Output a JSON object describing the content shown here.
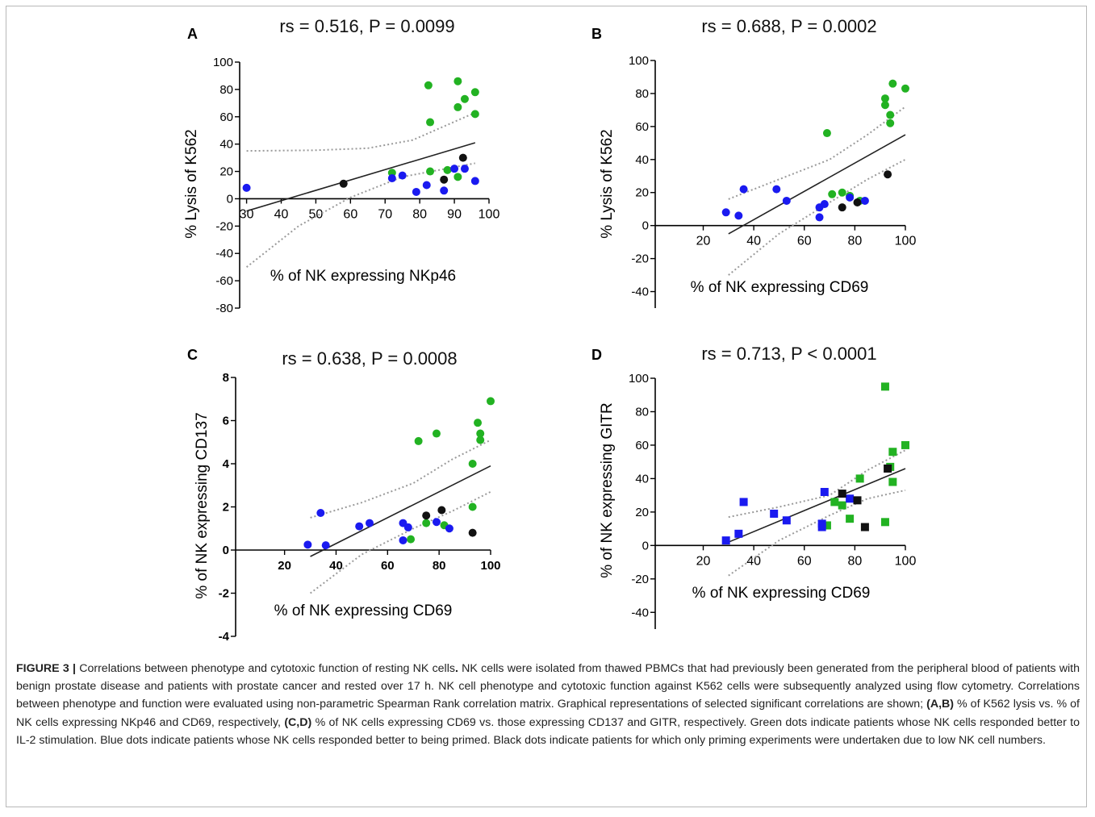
{
  "chart_data": [
    {
      "type": "scatter",
      "panel_label": "A",
      "title": "rs = 0.516, P = 0.0099",
      "xlabel": "% of NK expressing NKp46",
      "ylabel": "% Lysis of K562",
      "xlim": [
        28,
        100
      ],
      "ylim": [
        -80,
        100
      ],
      "xticks": [
        30,
        40,
        50,
        60,
        70,
        80,
        90,
        100
      ],
      "yticks": [
        -80,
        -60,
        -40,
        -20,
        0,
        20,
        40,
        60,
        80,
        100
      ],
      "marker": "circle",
      "series": [
        {
          "color": "#22b222",
          "points": [
            [
              82.5,
              83
            ],
            [
              91,
              86
            ],
            [
              96,
              78
            ],
            [
              93,
              73
            ],
            [
              91,
              67
            ],
            [
              96,
              62
            ],
            [
              83,
              56
            ],
            [
              72,
              19
            ],
            [
              83,
              20
            ],
            [
              88,
              21
            ],
            [
              91,
              16
            ]
          ]
        },
        {
          "color": "#1a1af0",
          "points": [
            [
              30,
              8
            ],
            [
              72,
              15
            ],
            [
              75,
              17
            ],
            [
              79,
              5
            ],
            [
              82,
              10
            ],
            [
              87,
              6
            ],
            [
              90,
              22
            ],
            [
              93,
              22
            ],
            [
              96,
              13
            ]
          ]
        },
        {
          "color": "#111111",
          "points": [
            [
              58,
              11
            ],
            [
              87,
              14
            ],
            [
              92.5,
              30
            ]
          ]
        }
      ],
      "fit_line": [
        [
          30,
          -9
        ],
        [
          96,
          41
        ]
      ],
      "ci_upper": [
        [
          30,
          35
        ],
        [
          50,
          35.5
        ],
        [
          65,
          37
        ],
        [
          78,
          43
        ],
        [
          96,
          63
        ]
      ],
      "ci_lower": [
        [
          30,
          -50
        ],
        [
          45,
          -20
        ],
        [
          60,
          1
        ],
        [
          75,
          16
        ],
        [
          96,
          26
        ]
      ]
    },
    {
      "type": "scatter",
      "panel_label": "B",
      "title": "rs = 0.688, P = 0.0002",
      "xlabel": "% of NK expressing CD69",
      "ylabel": "% Lysis of K562",
      "xlim": [
        1,
        100
      ],
      "ylim": [
        -50,
        100
      ],
      "xticks": [
        20,
        40,
        60,
        80,
        100
      ],
      "yticks": [
        -40,
        -20,
        0,
        20,
        40,
        60,
        80,
        100
      ],
      "marker": "circle",
      "series": [
        {
          "color": "#22b222",
          "points": [
            [
              95,
              86
            ],
            [
              100,
              83
            ],
            [
              92,
              77
            ],
            [
              92,
              73
            ],
            [
              94,
              67
            ],
            [
              94,
              62
            ],
            [
              69,
              56
            ],
            [
              71,
              19
            ],
            [
              75,
              20
            ],
            [
              78,
              18
            ],
            [
              82,
              15
            ]
          ]
        },
        {
          "color": "#1a1af0",
          "points": [
            [
              29,
              8
            ],
            [
              34,
              6
            ],
            [
              36,
              22
            ],
            [
              49,
              22
            ],
            [
              53,
              15
            ],
            [
              66,
              5
            ],
            [
              66,
              11
            ],
            [
              68,
              13
            ],
            [
              78,
              17
            ],
            [
              84,
              15
            ]
          ]
        },
        {
          "color": "#111111",
          "points": [
            [
              75,
              11
            ],
            [
              81,
              14
            ],
            [
              93,
              31
            ]
          ]
        }
      ],
      "fit_line": [
        [
          30,
          -5
        ],
        [
          100,
          55
        ]
      ],
      "ci_upper": [
        [
          30,
          16
        ],
        [
          50,
          28
        ],
        [
          70,
          40
        ],
        [
          85,
          55
        ],
        [
          100,
          72
        ]
      ],
      "ci_lower": [
        [
          30,
          -30
        ],
        [
          50,
          -5
        ],
        [
          70,
          14
        ],
        [
          85,
          28
        ],
        [
          100,
          40
        ]
      ]
    },
    {
      "type": "scatter",
      "panel_label": "C",
      "title": "rs = 0.638, P = 0.0008",
      "xlabel": "% of NK expressing CD69",
      "ylabel": "% of NK expressing CD137",
      "xlim": [
        1,
        100
      ],
      "ylim": [
        -4,
        8
      ],
      "xticks": [
        20,
        40,
        60,
        80,
        100
      ],
      "yticks": [
        -4,
        -2,
        0,
        2,
        4,
        6,
        8
      ],
      "marker": "circle",
      "series": [
        {
          "color": "#22b222",
          "points": [
            [
              100,
              6.9
            ],
            [
              95,
              5.9
            ],
            [
              96,
              5.4
            ],
            [
              96,
              5.1
            ],
            [
              79,
              5.4
            ],
            [
              72,
              5.05
            ],
            [
              93,
              4.0
            ],
            [
              93,
              2.0
            ],
            [
              75,
              1.25
            ],
            [
              69,
              0.5
            ],
            [
              82,
              1.15
            ]
          ]
        },
        {
          "color": "#1a1af0",
          "points": [
            [
              29,
              0.25
            ],
            [
              34,
              1.72
            ],
            [
              36,
              0.22
            ],
            [
              49,
              1.1
            ],
            [
              53,
              1.25
            ],
            [
              66,
              1.25
            ],
            [
              68,
              1.05
            ],
            [
              66,
              0.45
            ],
            [
              79,
              1.3
            ],
            [
              84,
              1.0
            ]
          ]
        },
        {
          "color": "#111111",
          "points": [
            [
              75,
              1.6
            ],
            [
              81,
              1.85
            ],
            [
              93,
              0.8
            ]
          ]
        }
      ],
      "fit_line": [
        [
          30,
          -0.3
        ],
        [
          100,
          3.9
        ]
      ],
      "ci_upper": [
        [
          30,
          1.5
        ],
        [
          50,
          2.2
        ],
        [
          70,
          3.1
        ],
        [
          85,
          4.2
        ],
        [
          100,
          5.1
        ]
      ],
      "ci_lower": [
        [
          30,
          -2.0
        ],
        [
          50,
          -0.2
        ],
        [
          70,
          1.0
        ],
        [
          85,
          1.8
        ],
        [
          100,
          2.7
        ]
      ]
    },
    {
      "type": "scatter",
      "panel_label": "D",
      "title": "rs = 0.713, P < 0.0001",
      "xlabel": "% of NK expressing CD69",
      "ylabel": "% of NK expressing GITR",
      "xlim": [
        1,
        100
      ],
      "ylim": [
        -50,
        100
      ],
      "xticks": [
        20,
        40,
        60,
        80,
        100
      ],
      "yticks": [
        -40,
        -20,
        0,
        20,
        40,
        60,
        80,
        100
      ],
      "marker": "square",
      "series": [
        {
          "color": "#22b222",
          "points": [
            [
              92,
              95
            ],
            [
              100,
              60
            ],
            [
              95,
              56
            ],
            [
              94,
              47
            ],
            [
              95,
              38
            ],
            [
              82,
              40
            ],
            [
              72,
              26
            ],
            [
              75,
              24
            ],
            [
              69,
              12
            ],
            [
              78,
              16
            ],
            [
              92,
              14
            ]
          ]
        },
        {
          "color": "#1a1af0",
          "points": [
            [
              29,
              3
            ],
            [
              34,
              7
            ],
            [
              36,
              26
            ],
            [
              48,
              19
            ],
            [
              53,
              15
            ],
            [
              67,
              13
            ],
            [
              67,
              11
            ],
            [
              68,
              32
            ],
            [
              78,
              28
            ]
          ]
        },
        {
          "color": "#111111",
          "points": [
            [
              75,
              31
            ],
            [
              81,
              27
            ],
            [
              84,
              11
            ],
            [
              93,
              46
            ]
          ]
        }
      ],
      "fit_line": [
        [
          30,
          2
        ],
        [
          100,
          46
        ]
      ],
      "ci_upper": [
        [
          30,
          17
        ],
        [
          50,
          23
        ],
        [
          70,
          30
        ],
        [
          85,
          45
        ],
        [
          100,
          57
        ]
      ],
      "ci_lower": [
        [
          30,
          -18
        ],
        [
          50,
          3
        ],
        [
          70,
          18
        ],
        [
          85,
          28
        ],
        [
          100,
          33
        ]
      ]
    }
  ],
  "caption": {
    "label": "FIGURE 3 |",
    "title": " Correlations between phenotype and cytotoxic function of resting NK cells",
    "title_end": ".",
    "text1": " NK cells were isolated from thawed PBMCs that had previously been generated from the peripheral blood of patients with benign prostate disease and patients with prostate cancer and rested over 17 h. NK cell phenotype and cytotoxic function against K562 cells were subsequently analyzed using flow cytometry. Correlations between phenotype and function were evaluated using non-parametric Spearman Rank correlation matrix. Graphical representations of selected significant correlations are shown; ",
    "ref1": "(A,B)",
    "text2": " % of K562 lysis vs. % of NK cells expressing NKp46 and CD69, respectively, ",
    "ref2": "(C,D)",
    "text3": " % of NK cells expressing CD69 vs. those expressing CD137 and GITR, respectively. Green dots indicate patients whose NK cells responded better to IL-2 stimulation. Blue dots indicate patients whose NK cells responded better to being primed. Black dots indicate patients for which only priming experiments were undertaken due to low NK cell numbers."
  }
}
